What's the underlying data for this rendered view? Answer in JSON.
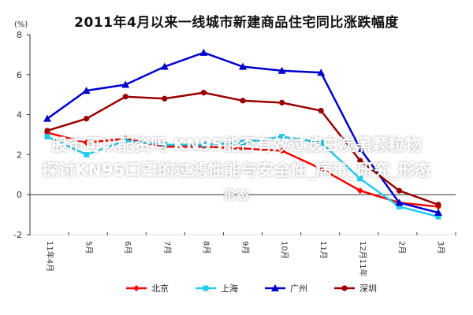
{
  "chart_data": {
    "type": "line",
    "title": "2011年4月以来一线城市新建商品住宅同比涨跌幅度",
    "ylabel": "(%)",
    "ylim": [
      -2,
      8
    ],
    "yticks": [
      "-2",
      "0",
      "2",
      "4",
      "6",
      "8"
    ],
    "categories": [
      "11年4月",
      "5月",
      "6月",
      "7月",
      "8月",
      "9月",
      "10月",
      "11月",
      "12月11年",
      "2月",
      "3月"
    ],
    "x_ticks": [
      "11年4月",
      "5月",
      "6月",
      "7月",
      "8月",
      "9月",
      "10月",
      "11月",
      "12月11年",
      "2月",
      "3月"
    ],
    "legend_position": "bottom",
    "series": [
      {
        "name": "北京",
        "color": "#ff0000",
        "marker": "diamond",
        "values": [
          3.1,
          2.6,
          2.8,
          2.4,
          2.4,
          2.3,
          2.2,
          1.3,
          0.2,
          -0.4,
          -0.6
        ]
      },
      {
        "name": "上海",
        "color": "#22ccee",
        "marker": "square",
        "values": [
          2.9,
          2.0,
          2.7,
          2.5,
          2.5,
          2.6,
          2.9,
          2.6,
          0.8,
          -0.6,
          -1.1
        ]
      },
      {
        "name": "广州",
        "color": "#0000cc",
        "marker": "triangle",
        "values": [
          3.8,
          5.2,
          5.5,
          6.4,
          7.1,
          6.4,
          6.2,
          6.1,
          2.3,
          -0.4,
          -0.9
        ]
      },
      {
        "name": "深圳",
        "color": "#990000",
        "marker": "circle",
        "values": [
          3.2,
          3.8,
          4.9,
          4.8,
          5.1,
          4.7,
          4.6,
          4.2,
          1.7,
          0.2,
          -0.5
        ]
      }
    ]
  },
  "watermark": {
    "line1": "股市可以配资吗 KN95能否有效过滤白炭黑颗粒物",
    "line2": "探讨KN95口罩的过滤性能与安全性_病毒_研究_形态",
    "line3": "形态"
  }
}
